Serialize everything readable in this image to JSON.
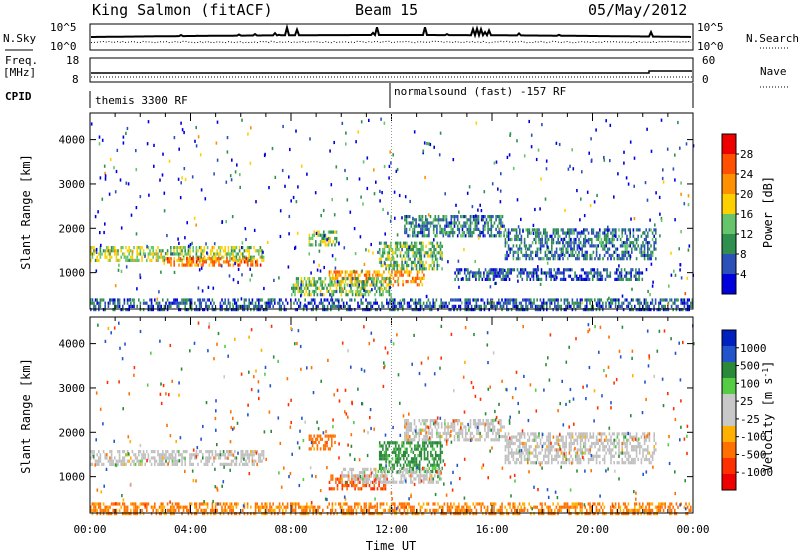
{
  "header": {
    "station": "King Salmon (fitACF)",
    "beam": "Beam 15",
    "date": "05/May/2012"
  },
  "side_labels": {
    "nsky": "N.Sky",
    "freq_line1": "Freq.",
    "freq_line2": "[MHz]",
    "cpid": "CPID",
    "nsearch": "N.Search",
    "nave": "Nave"
  },
  "mini_panels": {
    "noise_left_ticks": [
      "10^5",
      "10^0"
    ],
    "noise_right_ticks": [
      "10^5",
      "10^0"
    ],
    "freq_left_ticks": [
      "18",
      "8"
    ],
    "freq_right_ticks": [
      "60",
      "0"
    ]
  },
  "cpid_labels": [
    "themis 3300 RF",
    "normalsound (fast) -157 RF"
  ],
  "colors": {
    "power_scale": [
      "#0000dd",
      "#2b50b8",
      "#2f8f4f",
      "#66c56a",
      "#ffd000",
      "#ff9000",
      "#ff5000",
      "#ee0000"
    ],
    "velocity_scale": [
      "#0020c0",
      "#2255cc",
      "#2a8a3a",
      "#55cc44",
      "#c8c8c8",
      "#c8c8c8",
      "#ffb000",
      "#ff7000",
      "#ff3000",
      "#ee0000"
    ],
    "ground_scatter": "#c0c0c0"
  },
  "chart_data": [
    {
      "type": "heatmap",
      "name": "power",
      "xlabel": "",
      "ylabel": "Slant Range [km]",
      "x_ticks": [
        "00:00",
        "04:00",
        "08:00",
        "12:00",
        "16:00",
        "20:00",
        "00:00"
      ],
      "y_ticks": [
        1000,
        2000,
        3000,
        4000
      ],
      "ylim": [
        180,
        4600
      ],
      "xlim_hours": [
        0,
        24
      ],
      "colorbar_label": "Power [dB]",
      "colorbar_ticks": [
        4,
        8,
        12,
        16,
        20,
        24,
        28
      ],
      "colorbar_range": [
        0,
        30
      ],
      "regions": [
        {
          "t0": 0.0,
          "t1": 6.9,
          "r0": 1250,
          "r1": 1600,
          "value": 14
        },
        {
          "t0": 3.0,
          "t1": 6.8,
          "r0": 1180,
          "r1": 1350,
          "value": 22
        },
        {
          "t0": 8.7,
          "t1": 9.8,
          "r0": 1600,
          "r1": 1950,
          "value": 14
        },
        {
          "t0": 9.5,
          "t1": 13.3,
          "r0": 760,
          "r1": 1050,
          "value": 20
        },
        {
          "t0": 11.5,
          "t1": 14.0,
          "r0": 1100,
          "r1": 1700,
          "value": 12
        },
        {
          "t0": 12.5,
          "t1": 16.5,
          "r0": 1800,
          "r1": 2300,
          "value": 8
        },
        {
          "t0": 16.5,
          "t1": 22.5,
          "r0": 1300,
          "r1": 2000,
          "value": 8
        },
        {
          "t0": 8.0,
          "t1": 12.0,
          "r0": 500,
          "r1": 900,
          "value": 12
        },
        {
          "t0": 14.5,
          "t1": 22.0,
          "r0": 850,
          "r1": 1100,
          "value": 6
        },
        {
          "t0": 0.0,
          "t1": 24.0,
          "r0": 200,
          "r1": 420,
          "value": 6
        }
      ]
    },
    {
      "type": "heatmap",
      "name": "velocity",
      "xlabel": "Time UT",
      "ylabel": "Slant Range [km]",
      "x_ticks": [
        "00:00",
        "04:00",
        "08:00",
        "12:00",
        "16:00",
        "20:00",
        "00:00"
      ],
      "y_ticks": [
        1000,
        2000,
        3000,
        4000
      ],
      "ylim": [
        180,
        4600
      ],
      "xlim_hours": [
        0,
        24
      ],
      "colorbar_label": "Velocity [m s^-1]",
      "colorbar_ticks": [
        "1000",
        "500",
        "100",
        "25",
        "-25",
        "-100",
        "-500",
        "-1000"
      ],
      "regions": [
        {
          "t0": 0.0,
          "t1": 6.9,
          "r0": 1250,
          "r1": 1600,
          "value": "ground"
        },
        {
          "t0": 8.7,
          "t1": 9.8,
          "r0": 1600,
          "r1": 1950,
          "value": -300
        },
        {
          "t0": 9.5,
          "t1": 11.8,
          "r0": 760,
          "r1": 1050,
          "value": -500
        },
        {
          "t0": 11.5,
          "t1": 14.0,
          "r0": 1100,
          "r1": 1800,
          "value": 200
        },
        {
          "t0": 12.5,
          "t1": 16.5,
          "r0": 1800,
          "r1": 2300,
          "value": "ground"
        },
        {
          "t0": 16.5,
          "t1": 22.5,
          "r0": 1300,
          "r1": 2000,
          "value": "ground"
        },
        {
          "t0": 10.0,
          "t1": 14.0,
          "r0": 900,
          "r1": 1200,
          "value": "ground"
        },
        {
          "t0": 0.0,
          "t1": 24.0,
          "r0": 200,
          "r1": 420,
          "value": -150
        }
      ]
    }
  ]
}
